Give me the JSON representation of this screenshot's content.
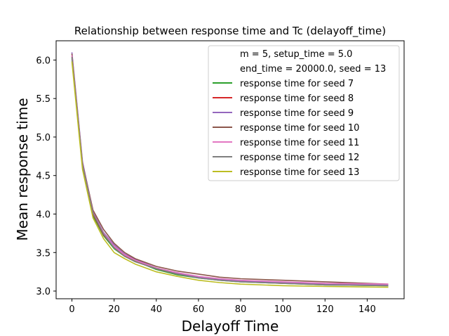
{
  "chart_data": {
    "type": "line",
    "title": "Relationship between response time and Tc (delayoff_time)",
    "xlabel": "Delayoff Time",
    "ylabel": "Mean response time",
    "xlim": [
      -7.5,
      157.5
    ],
    "ylim": [
      2.9,
      6.25
    ],
    "xticks": [
      0,
      20,
      40,
      60,
      80,
      100,
      120,
      140
    ],
    "yticks": [
      3.0,
      3.5,
      4.0,
      4.5,
      5.0,
      5.5,
      6.0
    ],
    "xtick_labels": [
      "0",
      "20",
      "40",
      "60",
      "80",
      "100",
      "120",
      "140"
    ],
    "ytick_labels": [
      "3.0",
      "3.5",
      "4.0",
      "4.5",
      "5.0",
      "5.5",
      "6.0"
    ],
    "grid": false,
    "legend_position": "top-right",
    "legend_header": [
      "m = 5, setup_time = 5.0",
      "end_time = 20000.0, seed = 13"
    ],
    "x": [
      0,
      5,
      10,
      15,
      20,
      25,
      30,
      40,
      50,
      60,
      70,
      80,
      100,
      120,
      150
    ],
    "series": [
      {
        "name": "response time for seed 7",
        "color": "#2ca02c",
        "values": [
          6.02,
          4.62,
          3.98,
          3.72,
          3.55,
          3.45,
          3.39,
          3.28,
          3.21,
          3.17,
          3.14,
          3.12,
          3.1,
          3.08,
          3.07
        ]
      },
      {
        "name": "response time for seed 8",
        "color": "#d62728",
        "values": [
          6.05,
          4.63,
          4.0,
          3.73,
          3.57,
          3.46,
          3.4,
          3.29,
          3.22,
          3.18,
          3.15,
          3.13,
          3.1,
          3.09,
          3.08
        ]
      },
      {
        "name": "response time for seed 9",
        "color": "#9467bd",
        "values": [
          6.1,
          4.68,
          4.03,
          3.76,
          3.6,
          3.48,
          3.41,
          3.3,
          3.23,
          3.18,
          3.15,
          3.13,
          3.11,
          3.09,
          3.08
        ]
      },
      {
        "name": "response time for seed 10",
        "color": "#8c564b",
        "values": [
          6.08,
          4.66,
          4.05,
          3.8,
          3.62,
          3.5,
          3.42,
          3.32,
          3.26,
          3.22,
          3.18,
          3.16,
          3.14,
          3.12,
          3.09
        ]
      },
      {
        "name": "response time for seed 11",
        "color": "#e377c2",
        "values": [
          6.06,
          4.65,
          4.02,
          3.75,
          3.58,
          3.47,
          3.4,
          3.3,
          3.24,
          3.19,
          3.16,
          3.14,
          3.12,
          3.1,
          3.09
        ]
      },
      {
        "name": "response time for seed 12",
        "color": "#7f7f7f",
        "values": [
          6.04,
          4.64,
          4.01,
          3.74,
          3.56,
          3.45,
          3.38,
          3.29,
          3.22,
          3.17,
          3.14,
          3.12,
          3.1,
          3.08,
          3.07
        ]
      },
      {
        "name": "response time for seed 13",
        "color": "#bcbd22",
        "values": [
          5.98,
          4.58,
          3.95,
          3.68,
          3.5,
          3.42,
          3.35,
          3.25,
          3.19,
          3.14,
          3.11,
          3.09,
          3.07,
          3.06,
          3.05
        ]
      }
    ]
  }
}
